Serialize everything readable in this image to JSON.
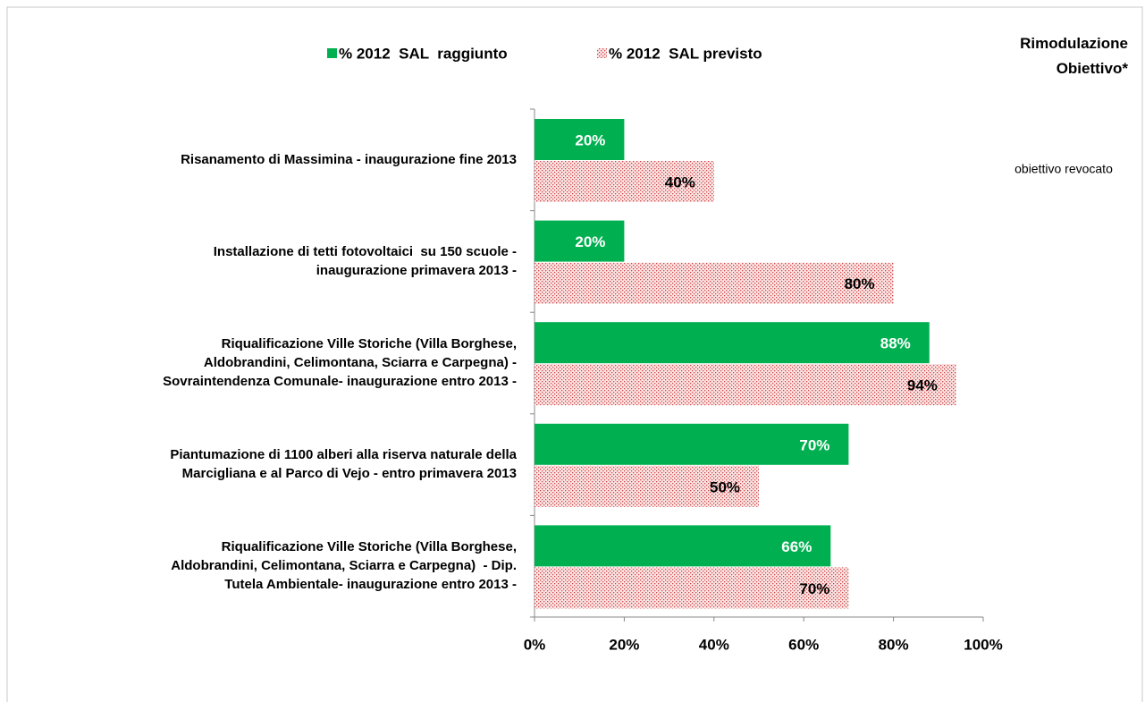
{
  "chart_data": {
    "type": "bar",
    "orientation": "horizontal",
    "categories": [
      "Risanamento di Massimina - inaugurazione fine 2013",
      "Installazione di tetti fotovoltaici  su 150 scuole -\ninaugurazione primavera 2013 -",
      "Riqualificazione Ville Storiche (Villa Borghese,\nAldobrandini, Celimontana, Sciarra e Carpegna) -\nSovraintendenza Comunale- inaugurazione entro 2013 -",
      "Piantumazione di 1100 alberi alla riserva naturale della\nMarcigliana e al Parco di Vejo - entro primavera 2013",
      "Riqualificazione Ville Storiche (Villa Borghese,\nAldobrandini, Celimontana, Sciarra e Carpegna)  - Dip.\nTutela Ambientale- inaugurazione entro 2013 -"
    ],
    "series": [
      {
        "name": "% 2012  SAL  raggiunto",
        "color": "#00b050",
        "values": [
          20,
          20,
          88,
          70,
          66
        ],
        "value_labels": [
          "20%",
          "20%",
          "88%",
          "70%",
          "66%"
        ]
      },
      {
        "name": "% 2012  SAL previsto",
        "color": "#e06060",
        "pattern": "dotted",
        "values": [
          40,
          80,
          94,
          50,
          70
        ],
        "value_labels": [
          "40%",
          "80%",
          "94%",
          "50%",
          "70%"
        ]
      }
    ],
    "xlim": [
      0,
      100
    ],
    "xticks": [
      {
        "value": 0,
        "label": "0%"
      },
      {
        "value": 20,
        "label": "20%"
      },
      {
        "value": 40,
        "label": "40%"
      },
      {
        "value": 60,
        "label": "60%"
      },
      {
        "value": 80,
        "label": "80%"
      },
      {
        "value": 100,
        "label": "100%"
      }
    ],
    "legend": "top",
    "side_header": "Rimodulazione\nObiettivo*",
    "annotations": [
      "obiettivo revocato",
      null,
      null,
      null,
      null
    ]
  }
}
